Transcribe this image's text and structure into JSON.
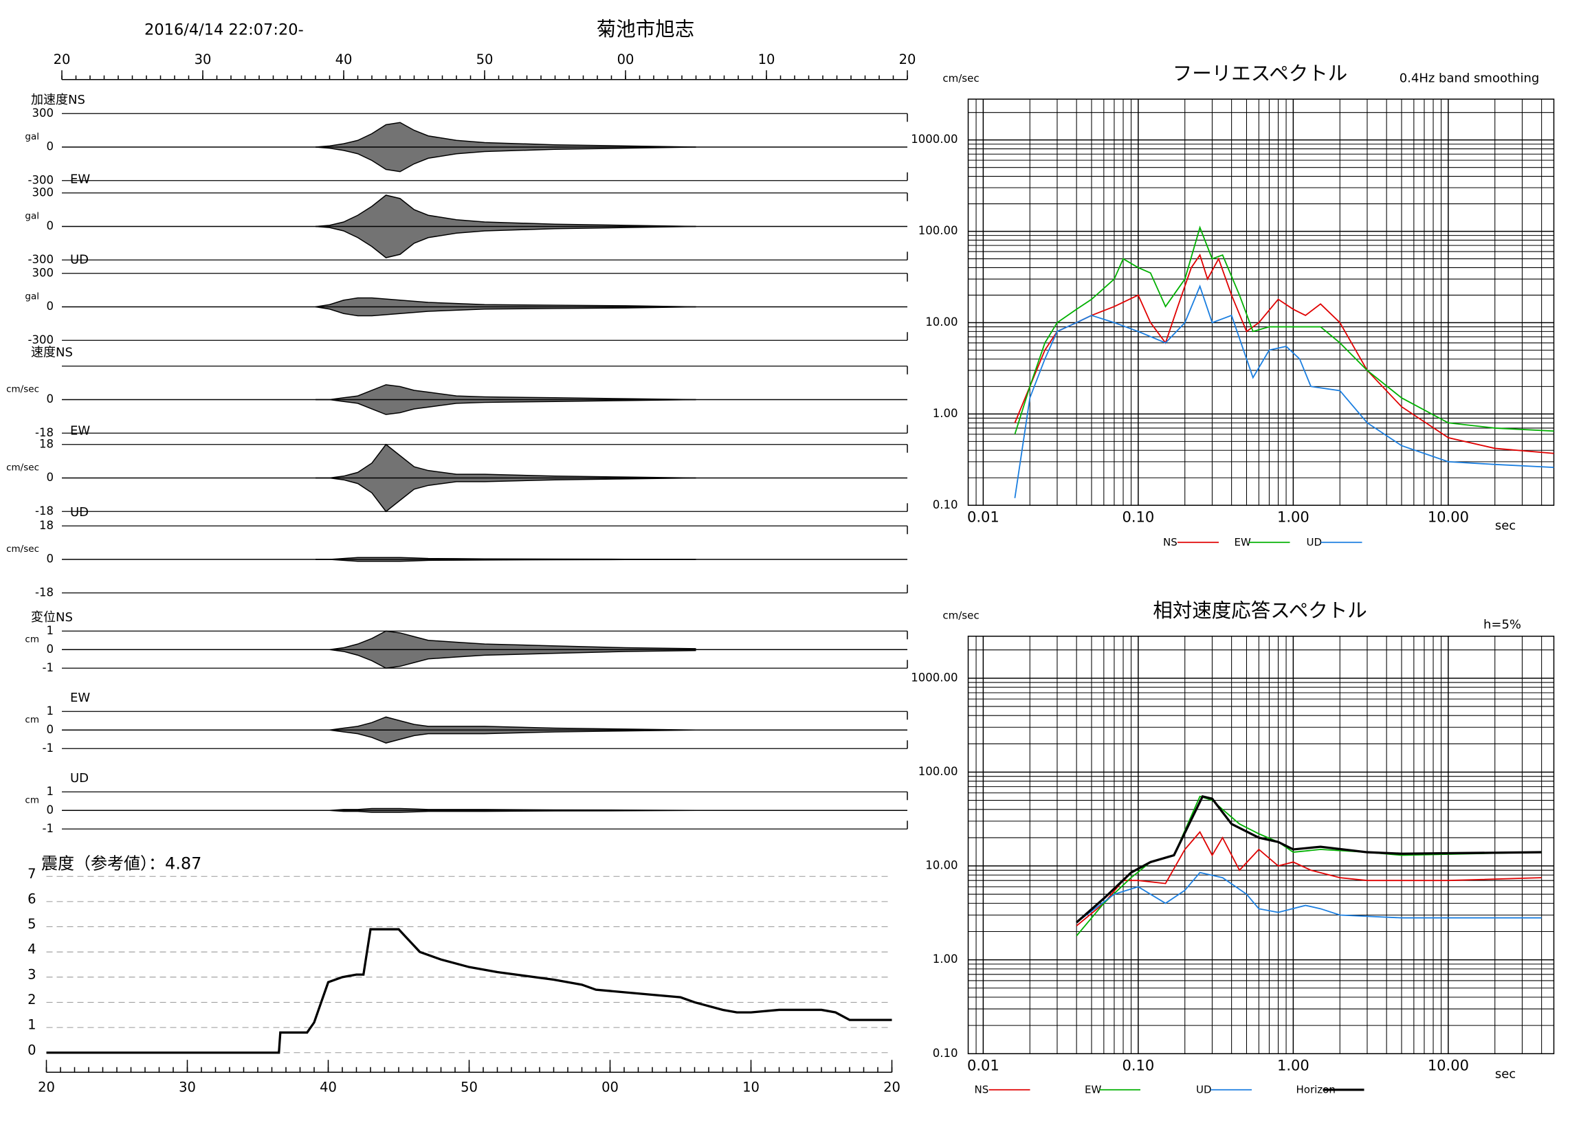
{
  "header": {
    "datetime": "2016/4/14 22:07:20-",
    "station": "菊池市旭志"
  },
  "time_axis": {
    "xlim": [
      20,
      80
    ],
    "xticks": [
      20,
      30,
      40,
      50,
      {
        "value": 60,
        "label": "00"
      },
      {
        "value": 70,
        "label": "10"
      },
      {
        "value": 80,
        "label": "20"
      }
    ],
    "minor_step": 1
  },
  "chart_data": [
    {
      "type": "waveform",
      "label": "加速度NS",
      "unit": "gal",
      "ylim": [
        -300,
        300
      ],
      "yticks": [
        300,
        0,
        -300
      ],
      "x": [
        38,
        39,
        40,
        41,
        42,
        43,
        44,
        45,
        46,
        48,
        50,
        55,
        60,
        65
      ],
      "envelope": [
        0,
        10,
        30,
        60,
        120,
        200,
        220,
        150,
        100,
        60,
        40,
        20,
        10,
        0
      ]
    },
    {
      "type": "waveform",
      "label": "EW",
      "unit": "gal",
      "ylim": [
        -300,
        300
      ],
      "yticks": [
        300,
        0,
        -300
      ],
      "x": [
        38,
        39,
        40,
        41,
        42,
        43,
        44,
        45,
        46,
        48,
        50,
        55,
        60,
        65
      ],
      "envelope": [
        0,
        10,
        40,
        100,
        180,
        280,
        250,
        150,
        100,
        60,
        40,
        20,
        10,
        0
      ]
    },
    {
      "type": "waveform",
      "label": "UD",
      "unit": "gal",
      "ylim": [
        -300,
        300
      ],
      "yticks": [
        300,
        0,
        -300
      ],
      "x": [
        38,
        39,
        40,
        41,
        42,
        43,
        44,
        45,
        46,
        48,
        50,
        55,
        60,
        65
      ],
      "envelope": [
        0,
        20,
        60,
        80,
        80,
        70,
        60,
        50,
        40,
        30,
        20,
        15,
        10,
        0
      ]
    },
    {
      "type": "waveform",
      "label": "速度NS",
      "unit": "cm/sec",
      "ylim": [
        -18,
        18
      ],
      "yticks": [
        0,
        -18
      ],
      "x": [
        38,
        39,
        40,
        41,
        42,
        43,
        44,
        45,
        46,
        48,
        50,
        55,
        60,
        65
      ],
      "envelope": [
        0,
        0,
        1,
        2,
        5,
        8,
        7,
        5,
        4,
        2,
        1.5,
        1,
        0.5,
        0
      ]
    },
    {
      "type": "waveform",
      "label": "EW",
      "unit": "cm/sec",
      "ylim": [
        -18,
        18
      ],
      "yticks": [
        18,
        0,
        -18
      ],
      "x": [
        38,
        39,
        40,
        41,
        42,
        43,
        44,
        45,
        46,
        48,
        50,
        55,
        60,
        65
      ],
      "envelope": [
        0,
        0,
        1,
        3,
        8,
        18,
        12,
        6,
        4,
        2,
        2,
        1,
        0.5,
        0
      ]
    },
    {
      "type": "waveform",
      "label": "UD",
      "unit": "cm/sec",
      "ylim": [
        -18,
        18
      ],
      "yticks": [
        18,
        0,
        -18
      ],
      "x": [
        38,
        39,
        40,
        41,
        42,
        43,
        44,
        45,
        46,
        48,
        50,
        55,
        60,
        65
      ],
      "envelope": [
        0,
        0,
        0.5,
        1,
        1,
        1,
        1,
        0.8,
        0.5,
        0.4,
        0.3,
        0.2,
        0.1,
        0
      ]
    },
    {
      "type": "waveform",
      "label": "変位NS",
      "unit": "cm",
      "ylim": [
        -1,
        1
      ],
      "yticks": [
        1,
        0,
        -1
      ],
      "x": [
        38,
        39,
        40,
        41,
        42,
        43,
        44,
        45,
        46,
        48,
        50,
        55,
        60,
        65
      ],
      "envelope": [
        0,
        0,
        0.1,
        0.3,
        0.6,
        1,
        0.9,
        0.7,
        0.5,
        0.4,
        0.3,
        0.2,
        0.1,
        0.05
      ]
    },
    {
      "type": "waveform",
      "label": "EW",
      "unit": "cm",
      "ylim": [
        -1,
        1
      ],
      "yticks": [
        1,
        0,
        -1
      ],
      "x": [
        38,
        39,
        40,
        41,
        42,
        43,
        44,
        45,
        46,
        48,
        50,
        55,
        60,
        65
      ],
      "envelope": [
        0,
        0,
        0.1,
        0.2,
        0.4,
        0.7,
        0.5,
        0.3,
        0.2,
        0.2,
        0.2,
        0.1,
        0.05,
        0
      ]
    },
    {
      "type": "waveform",
      "label": "UD",
      "unit": "cm",
      "ylim": [
        -1,
        1
      ],
      "yticks": [
        1,
        0,
        -1
      ],
      "x": [
        38,
        39,
        40,
        41,
        42,
        43,
        44,
        45,
        46,
        48,
        50,
        55,
        60,
        65
      ],
      "envelope": [
        0,
        0,
        0.05,
        0.05,
        0.1,
        0.1,
        0.1,
        0.08,
        0.05,
        0.05,
        0.05,
        0.03,
        0.02,
        0
      ]
    },
    {
      "type": "line",
      "title": "震度（参考値）：4.87",
      "xlim": [
        20,
        80
      ],
      "ylim": [
        0,
        7
      ],
      "yticks": [
        0,
        1,
        2,
        3,
        4,
        5,
        6,
        7
      ],
      "xticks": [
        20,
        30,
        40,
        50,
        {
          "value": 60,
          "label": "00"
        },
        {
          "value": 70,
          "label": "10"
        },
        {
          "value": 80,
          "label": "20"
        }
      ],
      "grid": true,
      "color": "#000000",
      "x": [
        20,
        36.5,
        36.6,
        38.5,
        39,
        39.5,
        40,
        41,
        42,
        42.5,
        43,
        45,
        45.5,
        46.5,
        48,
        50,
        52,
        56,
        58,
        59,
        63,
        65,
        66,
        68,
        69,
        70,
        72,
        75,
        76,
        77,
        80
      ],
      "values": [
        0,
        0,
        0.8,
        0.8,
        1.2,
        2.0,
        2.8,
        3.0,
        3.1,
        3.1,
        4.9,
        4.9,
        4.6,
        4.0,
        3.7,
        3.4,
        3.2,
        2.9,
        2.7,
        2.5,
        2.3,
        2.2,
        2.0,
        1.7,
        1.6,
        1.6,
        1.7,
        1.7,
        1.6,
        1.3,
        1.3
      ]
    },
    {
      "type": "logline",
      "title": "フーリエスペクトル",
      "subtitle": "0.4Hz band smoothing",
      "y_unit": "cm/sec",
      "x_unit": "sec",
      "log_x": true,
      "log_y": true,
      "grid": true,
      "xlim": [
        0.008,
        48
      ],
      "ylim": [
        0.1,
        2800
      ],
      "xticks": [
        0.01,
        {
          "value": 0.1,
          "label": "0.10"
        },
        {
          "value": 1,
          "label": "1.00"
        },
        {
          "value": 10,
          "label": "10.00"
        }
      ],
      "yticks": [
        {
          "value": 0.1,
          "label": "0.10"
        },
        {
          "value": 1,
          "label": "1.00"
        },
        {
          "value": 10,
          "label": "10.00"
        },
        {
          "value": 100,
          "label": "100.00"
        },
        {
          "value": 1000,
          "label": "1000.00"
        }
      ],
      "minor_xticks": [
        0.009,
        0.02,
        0.03,
        0.04,
        0.05,
        0.06,
        0.07,
        0.08,
        0.09,
        0.2,
        0.3,
        0.4,
        0.5,
        0.6,
        0.7,
        0.8,
        0.9,
        2,
        3,
        4,
        5,
        6,
        7,
        8,
        9,
        20,
        30,
        40
      ],
      "minor_yticks": [
        0.2,
        0.3,
        0.4,
        0.5,
        0.6,
        0.7,
        0.8,
        0.9,
        2,
        3,
        4,
        5,
        6,
        7,
        8,
        9,
        20,
        30,
        40,
        50,
        60,
        70,
        80,
        90,
        200,
        300,
        400,
        500,
        600,
        700,
        800,
        900,
        2000
      ],
      "series": [
        {
          "name": "NS",
          "color": "#e00000",
          "x": [
            0.016,
            0.02,
            0.025,
            0.03,
            0.04,
            0.05,
            0.07,
            0.1,
            0.12,
            0.15,
            0.18,
            0.22,
            0.25,
            0.28,
            0.33,
            0.4,
            0.5,
            0.6,
            0.8,
            1.0,
            1.2,
            1.5,
            2,
            3,
            5,
            10,
            20,
            48
          ],
          "values": [
            0.8,
            2,
            5,
            8,
            10,
            12,
            15,
            20,
            10,
            6,
            15,
            40,
            55,
            30,
            50,
            20,
            8,
            10,
            18,
            14,
            12,
            16,
            10,
            3,
            1.2,
            0.55,
            0.42,
            0.37
          ]
        },
        {
          "name": "EW",
          "color": "#00b000",
          "x": [
            0.016,
            0.02,
            0.025,
            0.03,
            0.04,
            0.05,
            0.07,
            0.08,
            0.1,
            0.12,
            0.15,
            0.2,
            0.25,
            0.3,
            0.35,
            0.45,
            0.55,
            0.7,
            1.0,
            1.5,
            2,
            3,
            5,
            10,
            20,
            48
          ],
          "values": [
            0.6,
            2,
            6,
            10,
            14,
            18,
            30,
            50,
            40,
            35,
            15,
            30,
            110,
            50,
            55,
            20,
            8,
            9,
            9,
            9,
            6,
            3,
            1.5,
            0.8,
            0.7,
            0.65
          ]
        },
        {
          "name": "UD",
          "color": "#1a7ee0",
          "x": [
            0.016,
            0.02,
            0.025,
            0.03,
            0.04,
            0.05,
            0.07,
            0.1,
            0.15,
            0.2,
            0.25,
            0.3,
            0.4,
            0.5,
            0.55,
            0.7,
            0.9,
            1.1,
            1.3,
            2,
            3,
            5,
            10,
            20,
            48
          ],
          "values": [
            0.12,
            1.5,
            4,
            8,
            10,
            12,
            10,
            8,
            6,
            10,
            25,
            10,
            12,
            4,
            2.5,
            5,
            5.5,
            4,
            2,
            1.8,
            0.8,
            0.45,
            0.3,
            0.28,
            0.26
          ]
        }
      ]
    },
    {
      "type": "logline",
      "title": "相対速度応答スペクトル",
      "annotation": "h=5%",
      "y_unit": "cm/sec",
      "x_unit": "sec",
      "log_x": true,
      "log_y": true,
      "grid": true,
      "xlim": [
        0.008,
        48
      ],
      "ylim": [
        0.1,
        2800
      ],
      "xticks": [
        0.01,
        {
          "value": 0.1,
          "label": "0.10"
        },
        {
          "value": 1,
          "label": "1.00"
        },
        {
          "value": 10,
          "label": "10.00"
        }
      ],
      "yticks": [
        {
          "value": 0.1,
          "label": "0.10"
        },
        {
          "value": 1,
          "label": "1.00"
        },
        {
          "value": 10,
          "label": "10.00"
        },
        {
          "value": 100,
          "label": "100.00"
        },
        {
          "value": 1000,
          "label": "1000.00"
        }
      ],
      "minor_xticks": [
        0.009,
        0.02,
        0.03,
        0.04,
        0.05,
        0.06,
        0.07,
        0.08,
        0.09,
        0.2,
        0.3,
        0.4,
        0.5,
        0.6,
        0.7,
        0.8,
        0.9,
        2,
        3,
        4,
        5,
        6,
        7,
        8,
        9,
        20,
        30,
        40
      ],
      "minor_yticks": [
        0.2,
        0.3,
        0.4,
        0.5,
        0.6,
        0.7,
        0.8,
        0.9,
        2,
        3,
        4,
        5,
        6,
        7,
        8,
        9,
        20,
        30,
        40,
        50,
        60,
        70,
        80,
        90,
        200,
        300,
        400,
        500,
        600,
        700,
        800,
        900,
        2000
      ],
      "series": [
        {
          "name": "NS",
          "color": "#e00000",
          "x": [
            0.04,
            0.06,
            0.08,
            0.1,
            0.15,
            0.2,
            0.25,
            0.3,
            0.35,
            0.45,
            0.6,
            0.8,
            1.0,
            1.3,
            2,
            3,
            10,
            40
          ],
          "values": [
            2.3,
            4,
            7,
            7,
            6.5,
            15,
            23,
            13,
            20,
            9,
            15,
            10,
            11,
            9,
            7.5,
            7,
            7,
            7.5
          ]
        },
        {
          "name": "EW",
          "color": "#00b000",
          "x": [
            0.04,
            0.06,
            0.09,
            0.12,
            0.17,
            0.25,
            0.3,
            0.35,
            0.45,
            0.6,
            0.8,
            1.0,
            1.5,
            3,
            5,
            40
          ],
          "values": [
            1.8,
            4,
            7.5,
            11,
            13,
            55,
            50,
            40,
            28,
            22,
            18,
            14,
            15,
            14,
            13,
            14
          ]
        },
        {
          "name": "UD",
          "color": "#1a7ee0",
          "x": [
            0.04,
            0.07,
            0.1,
            0.15,
            0.2,
            0.25,
            0.35,
            0.5,
            0.6,
            0.8,
            1.2,
            1.5,
            2,
            5,
            10,
            40
          ],
          "values": [
            2.5,
            5,
            6,
            4,
            5.5,
            8.5,
            7.5,
            5,
            3.5,
            3.2,
            3.8,
            3.5,
            3,
            2.8,
            2.8,
            2.8
          ]
        },
        {
          "name": "Horizon",
          "color": "#000000",
          "x": [
            0.04,
            0.06,
            0.09,
            0.12,
            0.17,
            0.26,
            0.3,
            0.4,
            0.6,
            0.8,
            1.0,
            1.5,
            3,
            5,
            40
          ],
          "values": [
            2.5,
            4.5,
            8.5,
            11,
            13,
            55,
            52,
            28,
            20,
            18,
            15,
            16,
            14,
            13.5,
            14
          ]
        }
      ]
    }
  ]
}
